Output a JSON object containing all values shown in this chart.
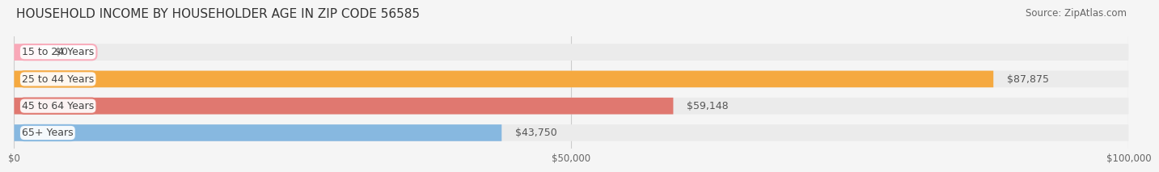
{
  "title": "HOUSEHOLD INCOME BY HOUSEHOLDER AGE IN ZIP CODE 56585",
  "source": "Source: ZipAtlas.com",
  "categories": [
    "15 to 24 Years",
    "25 to 44 Years",
    "45 to 64 Years",
    "65+ Years"
  ],
  "values": [
    0,
    87875,
    59148,
    43750
  ],
  "bar_colors": [
    "#f9a8b8",
    "#f5a940",
    "#e07870",
    "#87b8e0"
  ],
  "label_colors": [
    "#f9a8b8",
    "#f5a940",
    "#e07870",
    "#87b8e0"
  ],
  "value_labels": [
    "$0",
    "$87,875",
    "$59,148",
    "$43,750"
  ],
  "xlim": [
    0,
    100000
  ],
  "xticks": [
    0,
    50000,
    100000
  ],
  "xticklabels": [
    "$0",
    "$50,000",
    "$100,000"
  ],
  "bg_color": "#f5f5f5",
  "bar_bg_color": "#ebebeb",
  "title_fontsize": 11,
  "source_fontsize": 8.5,
  "label_fontsize": 9,
  "value_fontsize": 9
}
